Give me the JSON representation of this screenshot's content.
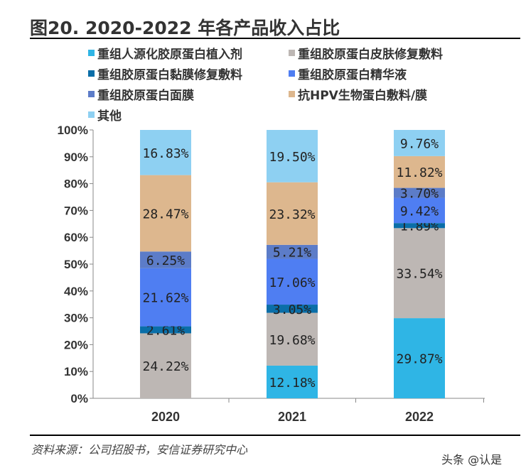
{
  "title": "图20. 2020-2022 年各产品收入占比",
  "source": "资料来源：公司招股书，安信证券研究中心",
  "watermark": "头条 @认是",
  "chart_data": {
    "type": "bar",
    "stacked": true,
    "percent": true,
    "categories": [
      "2020",
      "2021",
      "2022"
    ],
    "ylim": [
      0,
      100
    ],
    "yticks": [
      "0%",
      "10%",
      "20%",
      "30%",
      "40%",
      "50%",
      "60%",
      "70%",
      "80%",
      "90%",
      "100%"
    ],
    "legend_position": "top",
    "grid": false,
    "series": [
      {
        "name": "重组人源化胶原蛋白植入剂",
        "color": "#2FB5E5",
        "values": [
          0,
          12.18,
          29.87
        ],
        "labels": [
          "",
          "12.18%",
          "29.87%"
        ]
      },
      {
        "name": "重组胶原蛋白皮肤修复敷料",
        "color": "#BDB7B4",
        "values": [
          24.22,
          19.68,
          33.54
        ],
        "labels": [
          "24.22%",
          "19.68%",
          "33.54%"
        ]
      },
      {
        "name": "重组胶原蛋白黏膜修复敷料",
        "color": "#0A6EA8",
        "values": [
          2.61,
          3.05,
          1.89
        ],
        "labels": [
          "2.61%",
          "3.05%",
          "1.89%"
        ]
      },
      {
        "name": "重组胶原蛋白精华液",
        "color": "#4F7EF2",
        "values": [
          21.62,
          17.06,
          9.42
        ],
        "labels": [
          "21.62%",
          "17.06%",
          "9.42%"
        ]
      },
      {
        "name": "重组胶原蛋白面膜",
        "color": "#5C7CC8",
        "values": [
          6.25,
          5.21,
          3.7
        ],
        "labels": [
          "6.25%",
          "5.21%",
          "3.70%"
        ]
      },
      {
        "name": "抗HPV生物蛋白敷料/膜",
        "color": "#DDB78E",
        "values": [
          28.47,
          23.32,
          11.82
        ],
        "labels": [
          "28.47%",
          "23.32%",
          "11.82%"
        ]
      },
      {
        "name": "其他",
        "color": "#8ED0F2",
        "values": [
          16.83,
          19.5,
          9.76
        ],
        "labels": [
          "16.83%",
          "19.50%",
          "9.76%"
        ]
      }
    ]
  }
}
